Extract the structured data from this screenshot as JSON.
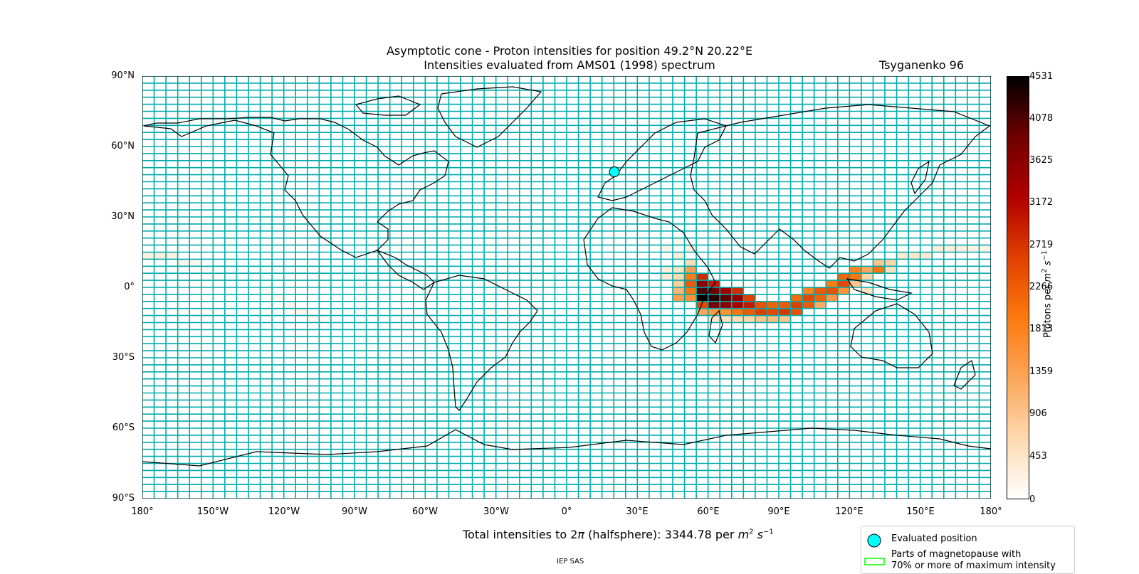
{
  "title": {
    "line1": "Asymptotic cone - Proton intensities for position 49.2°N 20.22°E",
    "line2": "Intensities evaluated from AMS01 (1998) spectrum"
  },
  "model": "Tsyganenko 96",
  "map": {
    "lat_ticks": [
      "90°N",
      "60°N",
      "30°N",
      "0°",
      "30°S",
      "60°S",
      "90°S"
    ],
    "lon_ticks": [
      "180°",
      "150°W",
      "120°W",
      "90°W",
      "60°W",
      "30°W",
      "0°",
      "30°E",
      "60°E",
      "90°E",
      "120°E",
      "150°E",
      "180°"
    ],
    "grid_color": "#00aaaa",
    "evaluated_position": {
      "lat": 49.2,
      "lon": 20.22,
      "color": "#00ffff"
    },
    "lat_range": [
      -90,
      90
    ],
    "lon_range": [
      -180,
      180
    ]
  },
  "colorbar": {
    "label_main": "Protons per ",
    "ticks": [
      "4531",
      "4078",
      "3625",
      "3172",
      "2719",
      "2266",
      "1813",
      "1359",
      "906",
      "453",
      "0"
    ],
    "min": 0,
    "max": 4531,
    "colormap": [
      "#ffffff",
      "#fdd9b0",
      "#fca65a",
      "#fc7a10",
      "#e04000",
      "#b00000",
      "#700000",
      "#000000"
    ]
  },
  "total": {
    "prefix": "Total intensities to 2",
    "pi": "π",
    "middle": " (halfsphere): 3344.78 per "
  },
  "legend": {
    "evaluated_label": "Evaluated position",
    "magnetopause_line1": "Parts of magnetopause with",
    "magnetopause_line2": "70% or more of maximum intensity",
    "evaluated_color": "#00ffff",
    "magnetopause_color": "#00ff00"
  },
  "credit": "IEP SAS",
  "chart_data": {
    "type": "heatmap",
    "x_unit": "longitude (degrees)",
    "y_unit": "latitude (degrees)",
    "cell_size_deg": [
      5,
      3
    ],
    "value_range": [
      0,
      4531
    ],
    "cells": [
      {
        "lon": -180,
        "lat": 12,
        "v": 250
      },
      {
        "lon": -175,
        "lat": 12,
        "v": 300
      },
      {
        "lon": -170,
        "lat": 12,
        "v": 250
      },
      {
        "lon": -165,
        "lat": 9,
        "v": 150
      },
      {
        "lon": -160,
        "lat": 9,
        "v": 150
      },
      {
        "lon": -155,
        "lat": 6,
        "v": 120
      },
      {
        "lon": -150,
        "lat": 3,
        "v": 100
      },
      {
        "lon": -130,
        "lat": -3,
        "v": 100
      },
      {
        "lon": -125,
        "lat": -6,
        "v": 150
      },
      {
        "lon": -120,
        "lat": -9,
        "v": 150
      },
      {
        "lon": -115,
        "lat": -12,
        "v": 180
      },
      {
        "lon": -110,
        "lat": -15,
        "v": 150
      },
      {
        "lon": -105,
        "lat": -15,
        "v": 120
      },
      {
        "lon": -90,
        "lat": 0,
        "v": 60
      },
      {
        "lon": -60,
        "lat": 0,
        "v": 60
      },
      {
        "lon": -30,
        "lat": 0,
        "v": 80
      },
      {
        "lon": 0,
        "lat": 0,
        "v": 80
      },
      {
        "lon": 40,
        "lat": 6,
        "v": 300
      },
      {
        "lon": 40,
        "lat": 3,
        "v": 350
      },
      {
        "lon": 45,
        "lat": 12,
        "v": 300
      },
      {
        "lon": 45,
        "lat": 6,
        "v": 450
      },
      {
        "lon": 45,
        "lat": 3,
        "v": 650
      },
      {
        "lon": 45,
        "lat": 0,
        "v": 800
      },
      {
        "lon": 45,
        "lat": -3,
        "v": 1100
      },
      {
        "lon": 45,
        "lat": -6,
        "v": 1400
      },
      {
        "lon": 50,
        "lat": 9,
        "v": 600
      },
      {
        "lon": 50,
        "lat": 6,
        "v": 1400
      },
      {
        "lon": 50,
        "lat": 3,
        "v": 1900
      },
      {
        "lon": 50,
        "lat": 0,
        "v": 2300
      },
      {
        "lon": 50,
        "lat": -3,
        "v": 2000
      },
      {
        "lon": 50,
        "lat": -6,
        "v": 1600
      },
      {
        "lon": 55,
        "lat": 3,
        "v": 2800
      },
      {
        "lon": 55,
        "lat": 0,
        "v": 3600
      },
      {
        "lon": 55,
        "lat": -3,
        "v": 4100
      },
      {
        "lon": 55,
        "lat": -6,
        "v": 4531
      },
      {
        "lon": 55,
        "lat": -9,
        "v": 2500
      },
      {
        "lon": 55,
        "lat": -12,
        "v": 1300
      },
      {
        "lon": 60,
        "lat": 0,
        "v": 3000
      },
      {
        "lon": 60,
        "lat": -3,
        "v": 3900
      },
      {
        "lon": 60,
        "lat": -6,
        "v": 4300
      },
      {
        "lon": 60,
        "lat": -9,
        "v": 3800
      },
      {
        "lon": 60,
        "lat": -12,
        "v": 1500
      },
      {
        "lon": 65,
        "lat": -3,
        "v": 3400
      },
      {
        "lon": 65,
        "lat": -6,
        "v": 4000
      },
      {
        "lon": 65,
        "lat": -9,
        "v": 3600
      },
      {
        "lon": 65,
        "lat": -12,
        "v": 1600
      },
      {
        "lon": 70,
        "lat": -3,
        "v": 2800
      },
      {
        "lon": 70,
        "lat": -6,
        "v": 3500
      },
      {
        "lon": 70,
        "lat": -9,
        "v": 3300
      },
      {
        "lon": 70,
        "lat": -12,
        "v": 2000
      },
      {
        "lon": 75,
        "lat": -6,
        "v": 2600
      },
      {
        "lon": 75,
        "lat": -9,
        "v": 3000
      },
      {
        "lon": 75,
        "lat": -12,
        "v": 2300
      },
      {
        "lon": 75,
        "lat": -15,
        "v": 700
      },
      {
        "lon": 80,
        "lat": -9,
        "v": 2400
      },
      {
        "lon": 80,
        "lat": -12,
        "v": 2600
      },
      {
        "lon": 80,
        "lat": -15,
        "v": 900
      },
      {
        "lon": 85,
        "lat": -9,
        "v": 2200
      },
      {
        "lon": 85,
        "lat": -12,
        "v": 2500
      },
      {
        "lon": 85,
        "lat": -15,
        "v": 1000
      },
      {
        "lon": 90,
        "lat": -9,
        "v": 2300
      },
      {
        "lon": 90,
        "lat": -12,
        "v": 2700
      },
      {
        "lon": 90,
        "lat": -15,
        "v": 900
      },
      {
        "lon": 95,
        "lat": -6,
        "v": 2100
      },
      {
        "lon": 95,
        "lat": -9,
        "v": 2600
      },
      {
        "lon": 95,
        "lat": -12,
        "v": 2400
      },
      {
        "lon": 100,
        "lat": -3,
        "v": 1800
      },
      {
        "lon": 100,
        "lat": -6,
        "v": 2500
      },
      {
        "lon": 100,
        "lat": -9,
        "v": 2300
      },
      {
        "lon": 105,
        "lat": -3,
        "v": 2300
      },
      {
        "lon": 105,
        "lat": -6,
        "v": 2200
      },
      {
        "lon": 105,
        "lat": -9,
        "v": 1200
      },
      {
        "lon": 110,
        "lat": 0,
        "v": 1900
      },
      {
        "lon": 110,
        "lat": -3,
        "v": 2400
      },
      {
        "lon": 110,
        "lat": -6,
        "v": 1500
      },
      {
        "lon": 115,
        "lat": 3,
        "v": 2200
      },
      {
        "lon": 115,
        "lat": 0,
        "v": 2500
      },
      {
        "lon": 115,
        "lat": -3,
        "v": 1600
      },
      {
        "lon": 120,
        "lat": 6,
        "v": 1800
      },
      {
        "lon": 120,
        "lat": 3,
        "v": 2000
      },
      {
        "lon": 120,
        "lat": 0,
        "v": 900
      },
      {
        "lon": 125,
        "lat": 6,
        "v": 1300
      },
      {
        "lon": 125,
        "lat": 3,
        "v": 700
      },
      {
        "lon": 125,
        "lat": -3,
        "v": 500
      },
      {
        "lon": 130,
        "lat": 9,
        "v": 900
      },
      {
        "lon": 130,
        "lat": 6,
        "v": 2000
      },
      {
        "lon": 135,
        "lat": 9,
        "v": 700
      },
      {
        "lon": 135,
        "lat": 6,
        "v": 500
      },
      {
        "lon": 140,
        "lat": 12,
        "v": 400
      },
      {
        "lon": 145,
        "lat": 12,
        "v": 450
      },
      {
        "lon": 150,
        "lat": 12,
        "v": 350
      },
      {
        "lon": 155,
        "lat": 15,
        "v": 300
      },
      {
        "lon": 160,
        "lat": 15,
        "v": 280
      },
      {
        "lon": 165,
        "lat": 15,
        "v": 250
      },
      {
        "lon": 170,
        "lat": 15,
        "v": 220
      },
      {
        "lon": 175,
        "lat": 15,
        "v": 200
      },
      {
        "lon": 40,
        "lat": 15,
        "v": 200
      },
      {
        "lon": 45,
        "lat": 18,
        "v": 150
      },
      {
        "lon": 50,
        "lat": 15,
        "v": 250
      },
      {
        "lon": 60,
        "lat": -15,
        "v": 400
      },
      {
        "lon": 65,
        "lat": -15,
        "v": 500
      },
      {
        "lon": 70,
        "lat": -15,
        "v": 600
      }
    ]
  }
}
